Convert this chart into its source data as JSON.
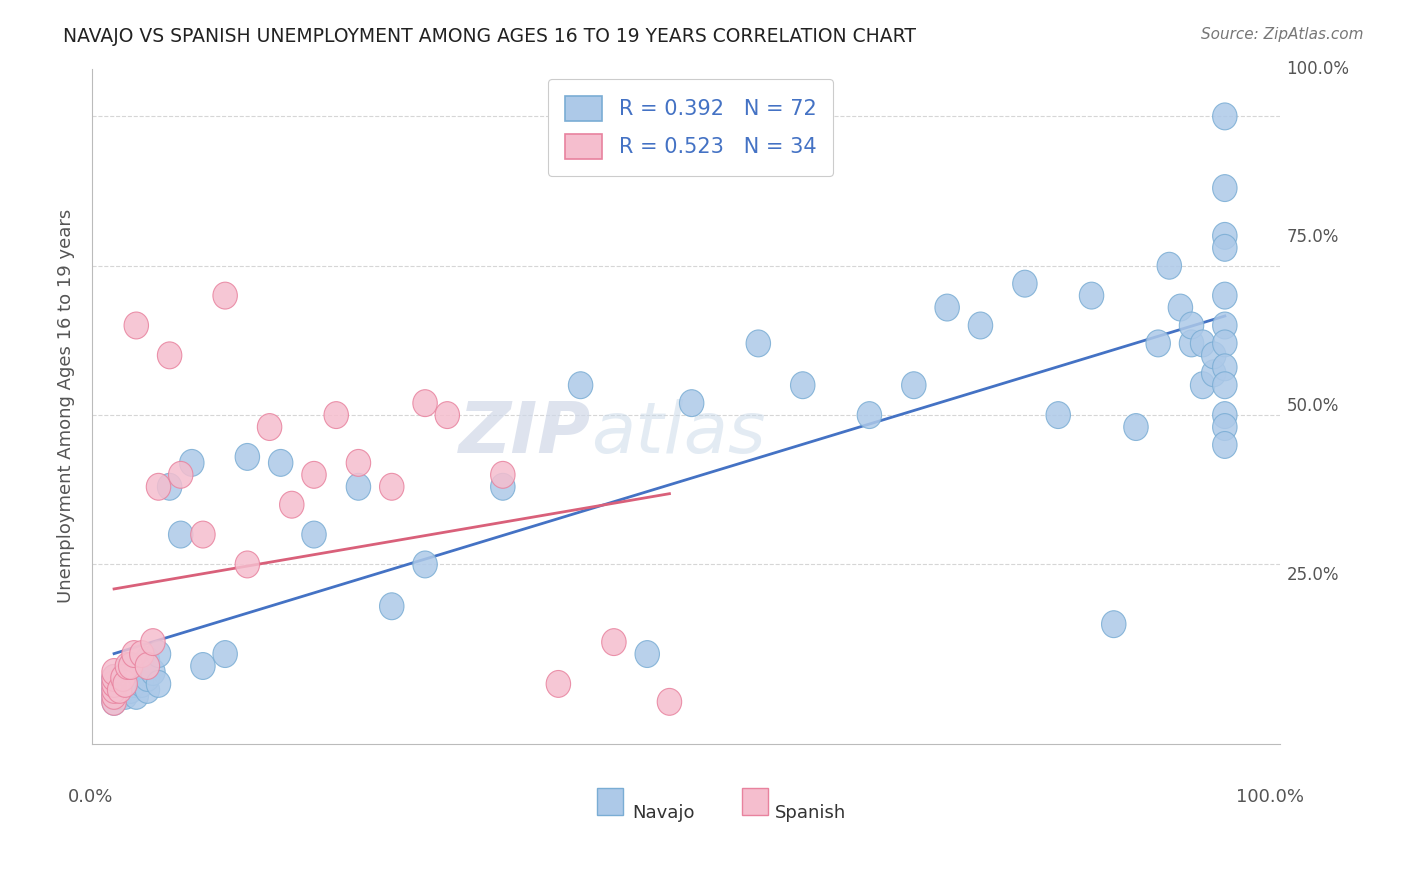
{
  "title": "NAVAJO VS SPANISH UNEMPLOYMENT AMONG AGES 16 TO 19 YEARS CORRELATION CHART",
  "source": "Source: ZipAtlas.com",
  "ylabel": "Unemployment Among Ages 16 to 19 years",
  "navajo_R": 0.392,
  "navajo_N": 72,
  "spanish_R": 0.523,
  "spanish_N": 34,
  "navajo_color": "#adc9e8",
  "navajo_edge_color": "#7aadd4",
  "spanish_color": "#f5bece",
  "spanish_edge_color": "#e8829e",
  "navajo_line_color": "#4472C4",
  "spanish_line_color": "#d9607a",
  "legend_text_color": "#4472C4",
  "legend_n_color": "#e06060",
  "background_color": "#ffffff",
  "watermark_zip": "ZIP",
  "watermark_atlas": "atlas",
  "ytick_labels": [
    "100.0%",
    "75.0%",
    "50.0%",
    "25.0%"
  ],
  "ytick_values": [
    1.0,
    0.75,
    0.5,
    0.25
  ],
  "navajo_x": [
    0.0,
    0.0,
    0.0,
    0.0,
    0.0,
    0.005,
    0.005,
    0.008,
    0.01,
    0.01,
    0.01,
    0.012,
    0.015,
    0.015,
    0.018,
    0.02,
    0.02,
    0.025,
    0.025,
    0.03,
    0.03,
    0.03,
    0.035,
    0.04,
    0.04,
    0.05,
    0.06,
    0.07,
    0.08,
    0.1,
    0.12,
    0.15,
    0.18,
    0.22,
    0.25,
    0.28,
    0.35,
    0.42,
    0.48,
    0.52,
    0.58,
    0.62,
    0.68,
    0.72,
    0.75,
    0.78,
    0.82,
    0.85,
    0.88,
    0.9,
    0.92,
    0.94,
    0.95,
    0.96,
    0.97,
    0.97,
    0.98,
    0.98,
    0.99,
    0.99,
    1.0,
    1.0,
    1.0,
    1.0,
    1.0,
    1.0,
    1.0,
    1.0,
    1.0,
    1.0,
    1.0,
    1.0
  ],
  "navajo_y": [
    0.02,
    0.03,
    0.04,
    0.05,
    0.06,
    0.03,
    0.05,
    0.04,
    0.03,
    0.05,
    0.07,
    0.06,
    0.04,
    0.08,
    0.05,
    0.03,
    0.07,
    0.05,
    0.08,
    0.04,
    0.06,
    0.09,
    0.07,
    0.05,
    0.1,
    0.38,
    0.3,
    0.42,
    0.08,
    0.1,
    0.43,
    0.42,
    0.3,
    0.38,
    0.18,
    0.25,
    0.38,
    0.55,
    0.1,
    0.52,
    0.62,
    0.55,
    0.5,
    0.55,
    0.68,
    0.65,
    0.72,
    0.5,
    0.7,
    0.15,
    0.48,
    0.62,
    0.75,
    0.68,
    0.62,
    0.65,
    0.55,
    0.62,
    0.57,
    0.6,
    0.88,
    0.8,
    0.78,
    0.7,
    0.65,
    0.62,
    0.58,
    0.55,
    0.5,
    0.48,
    0.45,
    1.0
  ],
  "spanish_x": [
    0.0,
    0.0,
    0.0,
    0.0,
    0.0,
    0.0,
    0.005,
    0.008,
    0.01,
    0.012,
    0.015,
    0.018,
    0.02,
    0.025,
    0.03,
    0.035,
    0.04,
    0.05,
    0.06,
    0.08,
    0.1,
    0.12,
    0.14,
    0.16,
    0.18,
    0.2,
    0.22,
    0.25,
    0.28,
    0.3,
    0.35,
    0.4,
    0.45,
    0.5
  ],
  "spanish_y": [
    0.02,
    0.03,
    0.04,
    0.05,
    0.06,
    0.07,
    0.04,
    0.06,
    0.05,
    0.08,
    0.08,
    0.1,
    0.65,
    0.1,
    0.08,
    0.12,
    0.38,
    0.6,
    0.4,
    0.3,
    0.7,
    0.25,
    0.48,
    0.35,
    0.4,
    0.5,
    0.42,
    0.38,
    0.52,
    0.5,
    0.4,
    0.05,
    0.12,
    0.02
  ]
}
